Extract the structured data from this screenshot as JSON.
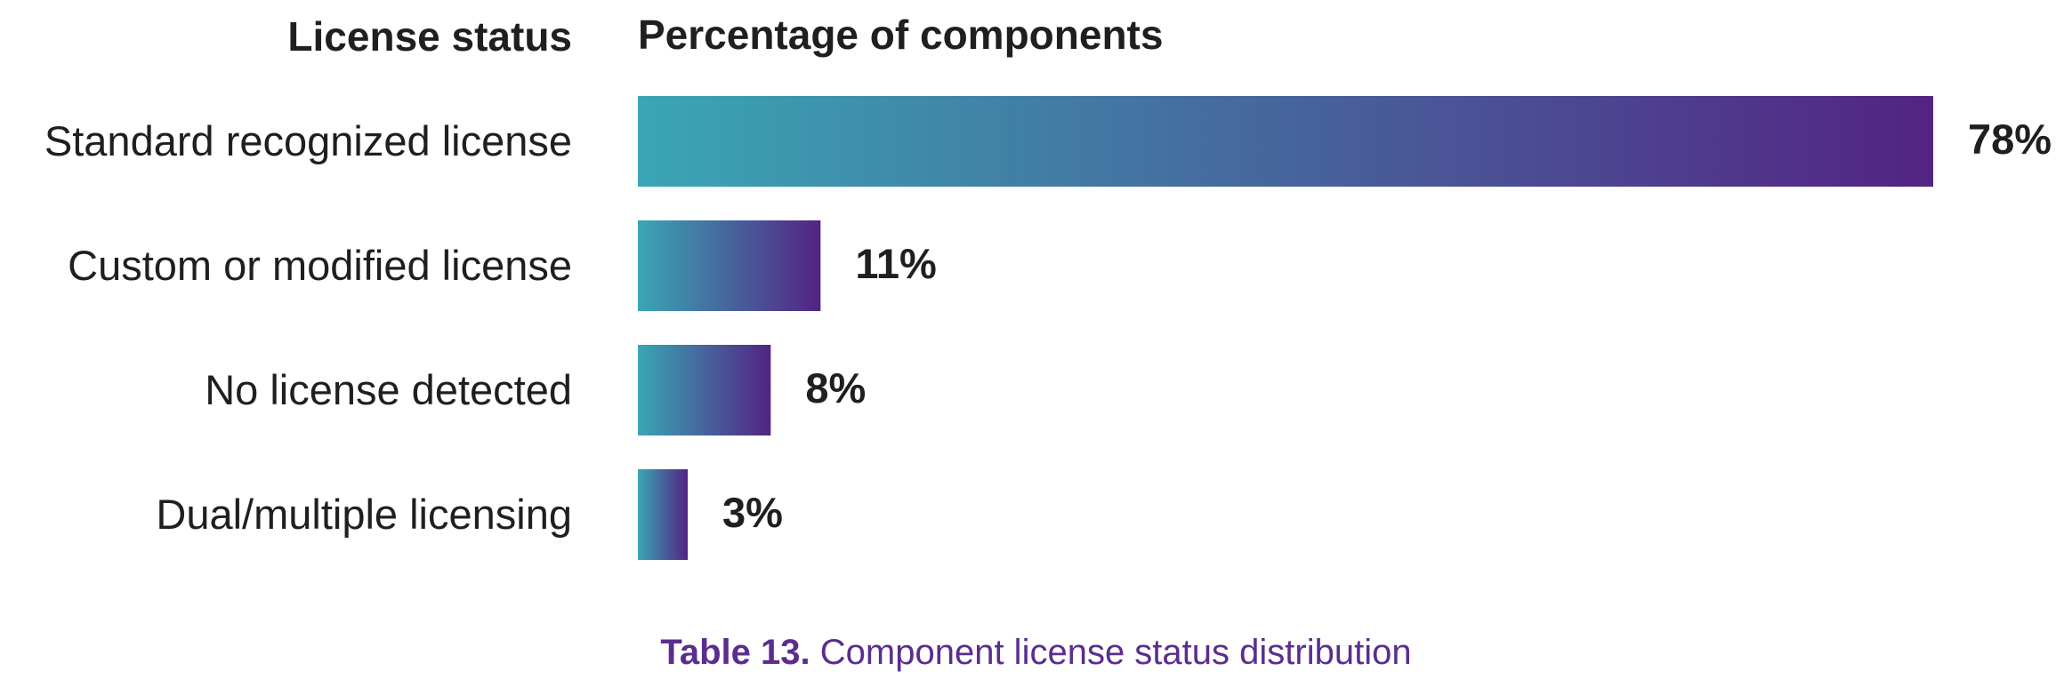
{
  "chart_data": {
    "type": "bar",
    "orientation": "horizontal",
    "category_header": "License status",
    "value_header": "Percentage of components",
    "categories": [
      "Standard recognized license",
      "Custom or modified license",
      "No license detected",
      "Dual/multiple licensing"
    ],
    "values": [
      78,
      11,
      8,
      3
    ],
    "value_labels": [
      "78%",
      "11%",
      "8%",
      "3%"
    ],
    "unit": "%",
    "xlim": [
      0,
      78
    ],
    "grid": false,
    "legend": "none",
    "bar_gradient": [
      "#3aa6b4",
      "#532384"
    ]
  },
  "caption": {
    "label": "Table 13.",
    "text": "Component license status distribution"
  }
}
